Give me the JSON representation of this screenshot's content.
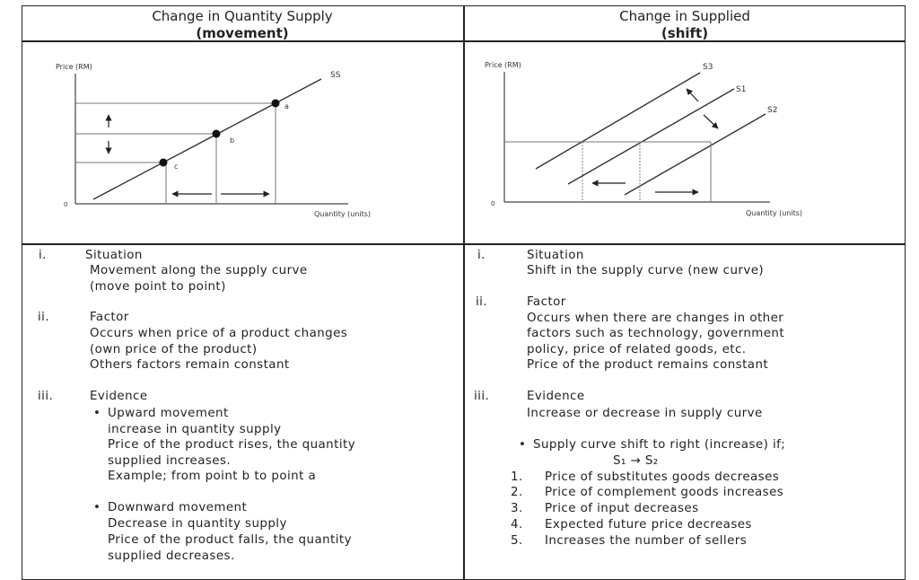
{
  "left": {
    "header": {
      "title": "Change in Quantity Supply",
      "subtitle": "(movement)"
    },
    "graph": {
      "ylabel": "Price (RM)",
      "xlabel": "Quantity (units)",
      "origin": "0",
      "curve": "SS",
      "points": [
        "a",
        "b",
        "c"
      ]
    },
    "sections": {
      "situation": {
        "num": "i.",
        "heading": "Situation",
        "lines": [
          "Movement along the supply curve",
          "(move point to point)"
        ]
      },
      "factor": {
        "num": "ii.",
        "heading": "Factor",
        "lines": [
          "Occurs when price of a product changes",
          "(own price of the product)",
          "Others factors remain constant"
        ]
      },
      "evidence": {
        "num": "iii.",
        "heading": "Evidence",
        "bullet1": {
          "label": "Upward movement",
          "lines": [
            "increase in quantity supply",
            "Price of the product rises, the quantity",
            "supplied increases.",
            "Example; from point b to point a"
          ]
        },
        "bullet2": {
          "label": "Downward movement",
          "lines": [
            "Decrease in quantity supply",
            "Price of the product falls, the quantity",
            "supplied decreases."
          ]
        }
      }
    }
  },
  "right": {
    "header": {
      "title": "Change in Supplied",
      "subtitle": "(shift)"
    },
    "graph": {
      "ylabel": "Price (RM)",
      "xlabel": "Quantity (units)",
      "origin": "0",
      "curves": [
        "S3",
        "S1",
        "S2"
      ]
    },
    "sections": {
      "situation": {
        "num": "i.",
        "heading": "Situation",
        "lines": [
          "Shift in the supply curve (new curve)"
        ]
      },
      "factor": {
        "num": "ii.",
        "heading": "Factor",
        "lines": [
          "Occurs when there are changes in other",
          "factors such as technology, government",
          "policy, price of related goods, etc.",
          "Price of the product remains constant"
        ]
      },
      "evidence": {
        "num": "iii.",
        "heading": "Evidence",
        "lines": [
          "Increase or decrease in supply curve"
        ],
        "bullet": "Supply curve shift to right (increase) if;",
        "formula": "S₁ → S₂",
        "items": [
          {
            "n": "1.",
            "text": "Price of substitutes goods decreases"
          },
          {
            "n": "2.",
            "text": "Price of complement goods increases"
          },
          {
            "n": "3.",
            "text": "Price of input decreases"
          },
          {
            "n": "4.",
            "text": "Expected future price decreases"
          },
          {
            "n": "5.",
            "text": "Increases the number of sellers"
          }
        ]
      }
    }
  }
}
